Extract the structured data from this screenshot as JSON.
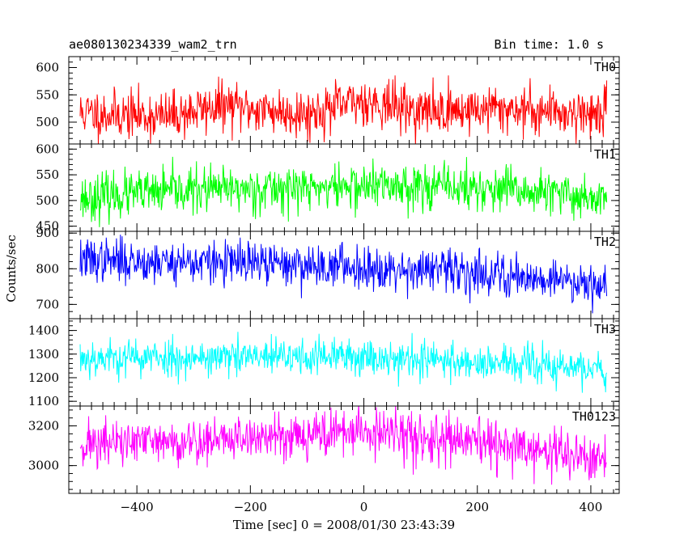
{
  "header": {
    "left": "ae080130234339_wam2_trn",
    "right": "Bin time: 1.0 s"
  },
  "chart_data": {
    "type": "line",
    "title": "ae080130234339_wam2_trn",
    "subtitle": "Bin time: 1.0 s",
    "xlabel": "Time [sec] 0 = 2008/01/30 23:43:39",
    "ylabel": "Counts/sec",
    "xlim": [
      -520,
      450
    ],
    "x_ticks": [
      -400,
      -200,
      0,
      200,
      400
    ],
    "x_tick_labels": [
      "−400",
      "−200",
      "0",
      "200",
      "400"
    ],
    "x_range_data": [
      -500,
      428
    ],
    "grid": false,
    "panels": [
      {
        "name": "TH0",
        "color": "#ff0000",
        "ylim": [
          460,
          620
        ],
        "y_ticks": [
          500,
          550,
          600
        ],
        "y_tick_labels": [
          "500",
          "550",
          "600"
        ],
        "profile": [
          [
            -500,
            517
          ],
          [
            -350,
            510
          ],
          [
            -250,
            530
          ],
          [
            -100,
            515
          ],
          [
            0,
            540
          ],
          [
            100,
            520
          ],
          [
            250,
            525
          ],
          [
            428,
            515
          ]
        ],
        "noise": 22,
        "seed": 11
      },
      {
        "name": "TH1",
        "color": "#00ff00",
        "ylim": [
          440,
          610
        ],
        "y_ticks": [
          450,
          500,
          550,
          600
        ],
        "y_tick_labels": [
          "450",
          "500",
          "550",
          "600"
        ],
        "profile": [
          [
            -500,
            505
          ],
          [
            -300,
            520
          ],
          [
            -100,
            525
          ],
          [
            100,
            530
          ],
          [
            300,
            515
          ],
          [
            428,
            505
          ]
        ],
        "noise": 22,
        "seed": 23
      },
      {
        "name": "TH2",
        "color": "#0000ff",
        "ylim": [
          660,
          905
        ],
        "y_ticks": [
          700,
          800,
          900
        ],
        "y_tick_labels": [
          "700",
          "800",
          "900"
        ],
        "profile": [
          [
            -500,
            825
          ],
          [
            -200,
            815
          ],
          [
            0,
            805
          ],
          [
            200,
            790
          ],
          [
            300,
            775
          ],
          [
            428,
            760
          ]
        ],
        "noise": 30,
        "seed": 37
      },
      {
        "name": "TH3",
        "color": "#00ffff",
        "ylim": [
          1080,
          1450
        ],
        "y_ticks": [
          1100,
          1200,
          1300,
          1400
        ],
        "y_tick_labels": [
          "1100",
          "1200",
          "1300",
          "1400"
        ],
        "profile": [
          [
            -500,
            1285
          ],
          [
            -200,
            1285
          ],
          [
            0,
            1290
          ],
          [
            200,
            1265
          ],
          [
            350,
            1245
          ],
          [
            428,
            1230
          ]
        ],
        "noise": 40,
        "seed": 53
      },
      {
        "name": "TH0123",
        "color": "#ff00ff",
        "ylim": [
          2860,
          3300
        ],
        "y_ticks": [
          3000,
          3200
        ],
        "y_tick_labels": [
          "3000",
          "3200"
        ],
        "profile": [
          [
            -500,
            3110
          ],
          [
            -300,
            3120
          ],
          [
            -100,
            3160
          ],
          [
            0,
            3170
          ],
          [
            200,
            3110
          ],
          [
            350,
            3060
          ],
          [
            428,
            3020
          ]
        ],
        "noise": 60,
        "seed": 71
      }
    ]
  }
}
